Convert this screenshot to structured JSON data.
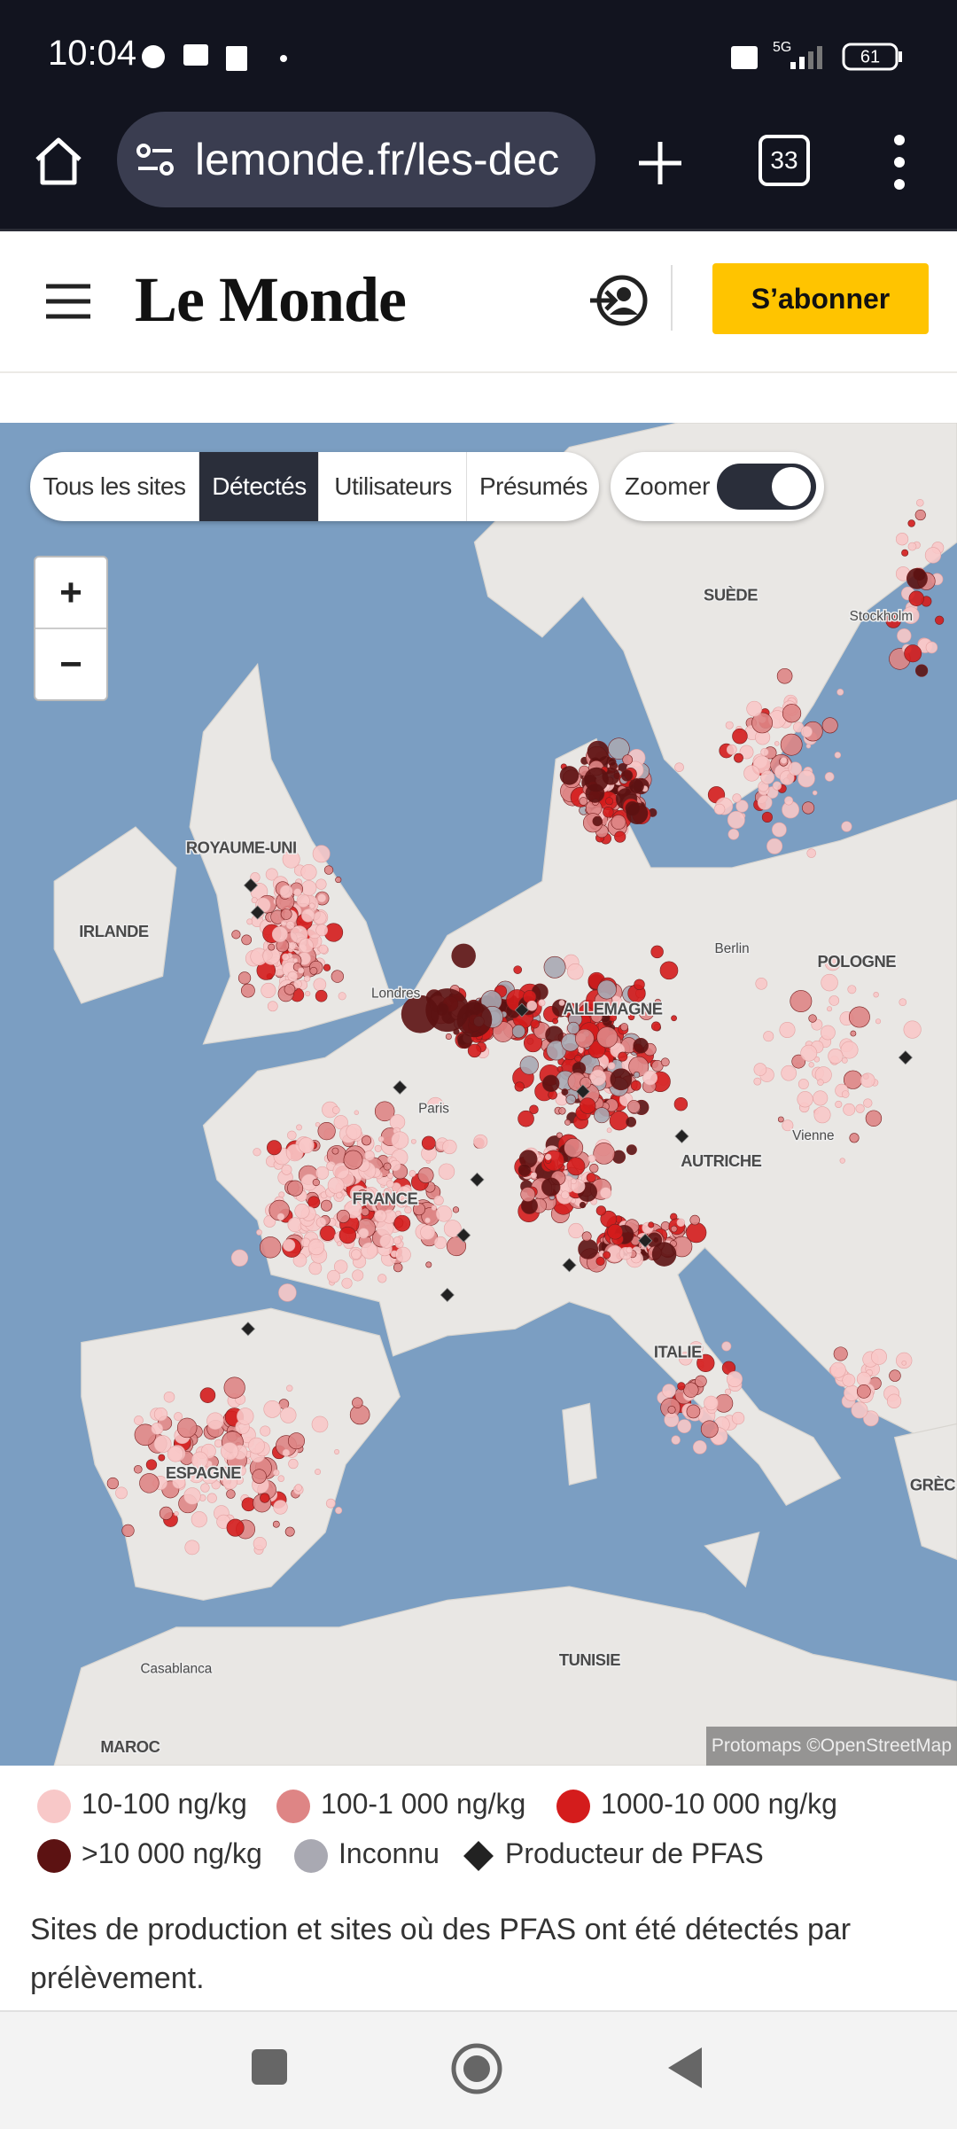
{
  "status_bar": {
    "time": "10:04",
    "network": "5G",
    "battery": "61"
  },
  "browser": {
    "url": "lemonde.fr/les-dec",
    "tab_count": "33"
  },
  "header": {
    "logo": "Le Monde",
    "subscribe": "S’abonner"
  },
  "map": {
    "filters": [
      "Tous les sites",
      "Détectés",
      "Utilisateurs",
      "Présumés"
    ],
    "active_filter_index": 1,
    "zoom_toggle": "Zoomer",
    "zoom_in": "+",
    "zoom_out": "−",
    "attribution": "Protomaps ©OpenStreetMap",
    "labels": [
      "SUÈDE",
      "Stockholm",
      "ROYAUME-UNI",
      "IRLANDE",
      "POLOGNE",
      "Berlin",
      "Londres",
      "ALLEMAGNE",
      "Paris",
      "Vienne",
      "AUTRICHE",
      "FRANCE",
      "ITALIE",
      "ESPAGNE",
      "GRÈC",
      "Casablanca",
      "TUNISIE",
      "MAROC"
    ]
  },
  "legend": [
    {
      "label": "10-100 ng/kg",
      "color": "#f8c8c8"
    },
    {
      "label": "100-1 000 ng/kg",
      "color": "#de8585"
    },
    {
      "label": "1000-10 000 ng/kg",
      "color": "#d41c1c"
    },
    {
      "label": ">10 000 ng/kg",
      "color": "#5c1212"
    },
    {
      "label": "Inconnu",
      "color": "#a9a9b2"
    },
    {
      "label": "Producteur de PFAS",
      "color": "#222222"
    }
  ],
  "caption": "Sites de production et sites où des PFAS ont été détectés par prélèvement."
}
